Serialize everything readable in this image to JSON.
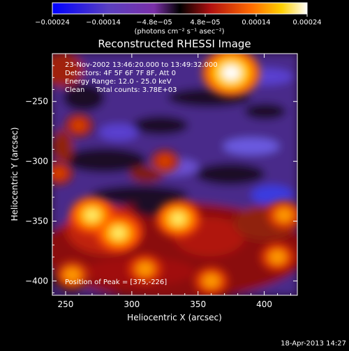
{
  "chart_data": {
    "type": "heatmap",
    "title": "Reconstructed RHESSI Image",
    "xlabel": "Heliocentric X (arcsec)",
    "ylabel": "Heliocentric Y (arcsec)",
    "xlim": [
      240,
      425
    ],
    "ylim": [
      -412,
      -210
    ],
    "xticks": [
      250,
      300,
      350,
      400
    ],
    "yticks": [
      -250,
      -300,
      -350,
      -400
    ],
    "xtick_labels": [
      "250",
      "300",
      "350",
      "400"
    ],
    "ytick_labels": [
      "−250",
      "−300",
      "−350",
      "−400"
    ],
    "colorbar": {
      "range": [
        -0.00024,
        0.00024
      ],
      "tick_labels": [
        "−0.00024",
        "−0.00014",
        "−4.8e−05",
        "4.8e−05",
        "0.00014",
        "0.00024"
      ],
      "units": "(photons cm⁻² s⁻¹ asec⁻²)",
      "colors": [
        "#0000ff",
        "#5a3fc0",
        "#7a2fa8",
        "#000000",
        "#b01010",
        "#ff6a00",
        "#ffd000",
        "#ffffff"
      ]
    },
    "annotations": [
      "23-Nov-2002 13:46:20.000 to 13:49:32.000",
      "Detectors: 4F 5F 6F 7F 8F, Att 0",
      "Energy Range: 12.0 - 25.0 keV",
      "Clean     Total counts: 3.78E+03"
    ],
    "peak_label": "Position of Peak = [375,-226]",
    "peak": [
      375,
      -226
    ],
    "bright_regions": [
      {
        "x": 375,
        "y": -226,
        "level": "peak"
      },
      {
        "x": 270,
        "y": -345,
        "level": "high"
      },
      {
        "x": 290,
        "y": -360,
        "level": "high"
      },
      {
        "x": 335,
        "y": -348,
        "level": "high"
      },
      {
        "x": 310,
        "y": -390,
        "level": "medium"
      },
      {
        "x": 360,
        "y": -400,
        "level": "medium"
      },
      {
        "x": 255,
        "y": -395,
        "level": "medium"
      },
      {
        "x": 410,
        "y": -380,
        "level": "medium"
      },
      {
        "x": 415,
        "y": -345,
        "level": "medium"
      },
      {
        "x": 260,
        "y": -270,
        "level": "low"
      },
      {
        "x": 325,
        "y": -300,
        "level": "low"
      },
      {
        "x": 245,
        "y": -310,
        "level": "low"
      }
    ]
  },
  "footer": {
    "date": "18-Apr-2013 14:27"
  }
}
